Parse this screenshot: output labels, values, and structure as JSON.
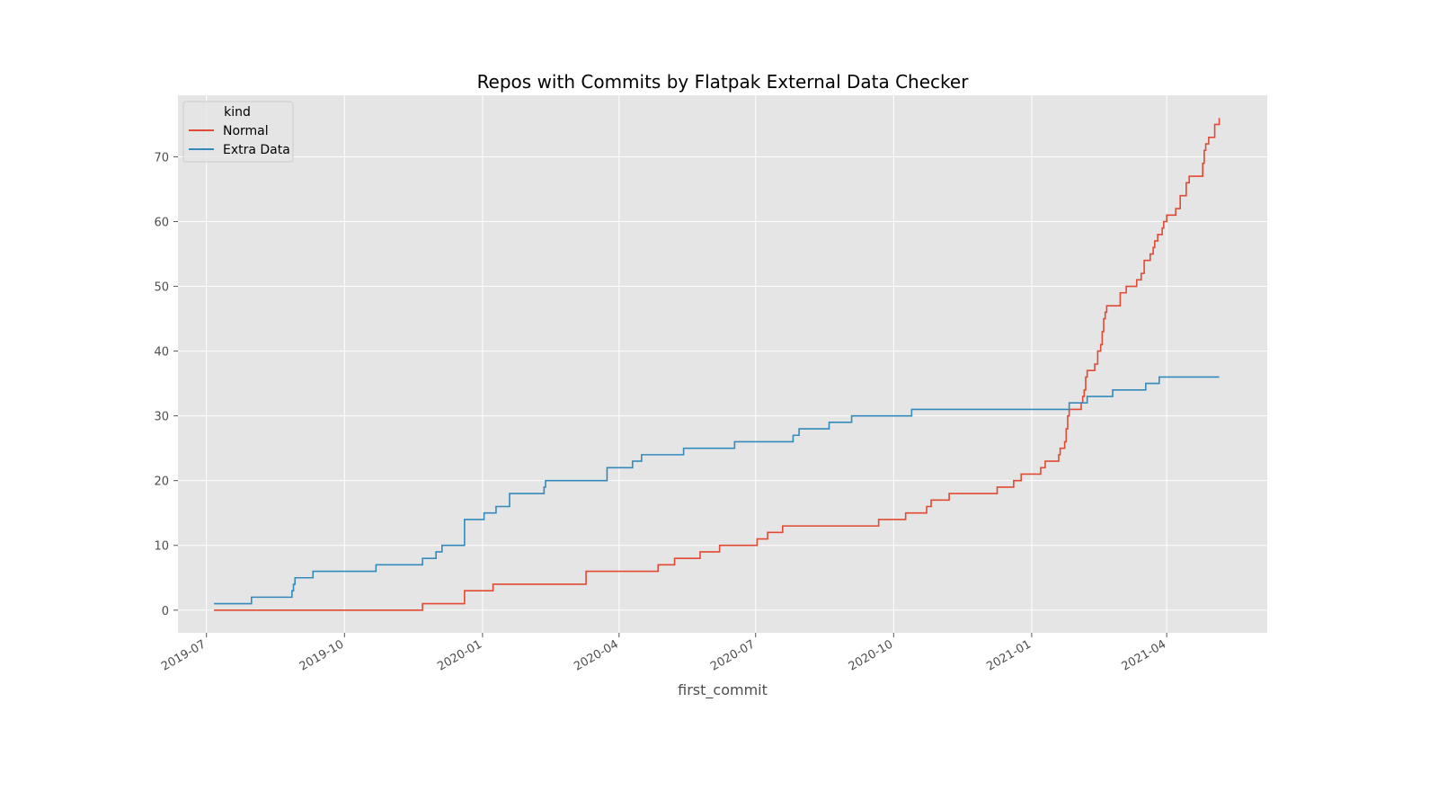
{
  "chart_data": {
    "type": "line",
    "step": "post",
    "title": "Repos with Commits by Flatpak External Data Checker",
    "xlabel": "first_commit",
    "ylabel": "",
    "x_axis_type": "date",
    "xlim": [
      "2019-06-12",
      "2021-06-07"
    ],
    "ylim": [
      -3.5,
      79.5
    ],
    "xticks": [
      "2019-07",
      "2019-10",
      "2020-01",
      "2020-04",
      "2020-07",
      "2020-10",
      "2021-01",
      "2021-04"
    ],
    "yticks": [
      0,
      10,
      20,
      30,
      40,
      50,
      60,
      70
    ],
    "grid": true,
    "style": "ggplot",
    "background": "#e5e5e5",
    "legend": {
      "title": "kind",
      "placement": "top-left"
    },
    "series": [
      {
        "name": "Normal",
        "color": "#e24a33",
        "points": [
          [
            "2019-07-06",
            0
          ],
          [
            "2019-11-22",
            1
          ],
          [
            "2019-12-20",
            3
          ],
          [
            "2020-01-08",
            4
          ],
          [
            "2020-03-10",
            6
          ],
          [
            "2020-04-27",
            7
          ],
          [
            "2020-05-08",
            8
          ],
          [
            "2020-05-25",
            9
          ],
          [
            "2020-06-07",
            10
          ],
          [
            "2020-07-02",
            11
          ],
          [
            "2020-07-09",
            12
          ],
          [
            "2020-07-19",
            13
          ],
          [
            "2020-09-21",
            14
          ],
          [
            "2020-10-09",
            15
          ],
          [
            "2020-10-23",
            16
          ],
          [
            "2020-10-26",
            17
          ],
          [
            "2020-11-07",
            18
          ],
          [
            "2020-12-09",
            19
          ],
          [
            "2020-12-20",
            20
          ],
          [
            "2020-12-25",
            21
          ],
          [
            "2021-01-07",
            22
          ],
          [
            "2021-01-10",
            23
          ],
          [
            "2021-01-19",
            24
          ],
          [
            "2021-01-20",
            25
          ],
          [
            "2021-01-23",
            26
          ],
          [
            "2021-01-24",
            28
          ],
          [
            "2021-01-25",
            30
          ],
          [
            "2021-01-26",
            31
          ],
          [
            "2021-02-03",
            32
          ],
          [
            "2021-02-04",
            33
          ],
          [
            "2021-02-05",
            34
          ],
          [
            "2021-02-06",
            36
          ],
          [
            "2021-02-07",
            37
          ],
          [
            "2021-02-12",
            38
          ],
          [
            "2021-02-14",
            40
          ],
          [
            "2021-02-16",
            41
          ],
          [
            "2021-02-17",
            43
          ],
          [
            "2021-02-18",
            45
          ],
          [
            "2021-02-19",
            46
          ],
          [
            "2021-02-20",
            47
          ],
          [
            "2021-03-01",
            49
          ],
          [
            "2021-03-05",
            50
          ],
          [
            "2021-03-12",
            51
          ],
          [
            "2021-03-15",
            52
          ],
          [
            "2021-03-17",
            54
          ],
          [
            "2021-03-21",
            55
          ],
          [
            "2021-03-23",
            56
          ],
          [
            "2021-03-24",
            57
          ],
          [
            "2021-03-26",
            58
          ],
          [
            "2021-03-29",
            59
          ],
          [
            "2021-03-30",
            60
          ],
          [
            "2021-04-01",
            61
          ],
          [
            "2021-04-07",
            62
          ],
          [
            "2021-04-10",
            64
          ],
          [
            "2021-04-14",
            66
          ],
          [
            "2021-04-16",
            67
          ],
          [
            "2021-04-25",
            69
          ],
          [
            "2021-04-26",
            71
          ],
          [
            "2021-04-27",
            72
          ],
          [
            "2021-04-29",
            73
          ],
          [
            "2021-05-03",
            75
          ],
          [
            "2021-05-06",
            76
          ]
        ]
      },
      {
        "name": "Extra Data",
        "color": "#348abd",
        "points": [
          [
            "2019-07-06",
            1
          ],
          [
            "2019-07-31",
            2
          ],
          [
            "2019-08-27",
            3
          ],
          [
            "2019-08-28",
            4
          ],
          [
            "2019-08-29",
            5
          ],
          [
            "2019-09-10",
            6
          ],
          [
            "2019-10-22",
            7
          ],
          [
            "2019-11-22",
            8
          ],
          [
            "2019-12-01",
            9
          ],
          [
            "2019-12-05",
            10
          ],
          [
            "2019-12-20",
            14
          ],
          [
            "2020-01-02",
            15
          ],
          [
            "2020-01-10",
            16
          ],
          [
            "2020-01-19",
            18
          ],
          [
            "2020-02-11",
            19
          ],
          [
            "2020-02-12",
            20
          ],
          [
            "2020-03-24",
            22
          ],
          [
            "2020-04-10",
            23
          ],
          [
            "2020-04-16",
            24
          ],
          [
            "2020-05-14",
            25
          ],
          [
            "2020-06-17",
            26
          ],
          [
            "2020-07-26",
            27
          ],
          [
            "2020-07-30",
            28
          ],
          [
            "2020-08-19",
            29
          ],
          [
            "2020-09-03",
            30
          ],
          [
            "2020-10-13",
            31
          ],
          [
            "2021-01-26",
            32
          ],
          [
            "2021-02-07",
            33
          ],
          [
            "2021-02-24",
            34
          ],
          [
            "2021-03-18",
            35
          ],
          [
            "2021-03-27",
            36
          ],
          [
            "2021-05-06",
            36
          ]
        ]
      }
    ]
  }
}
